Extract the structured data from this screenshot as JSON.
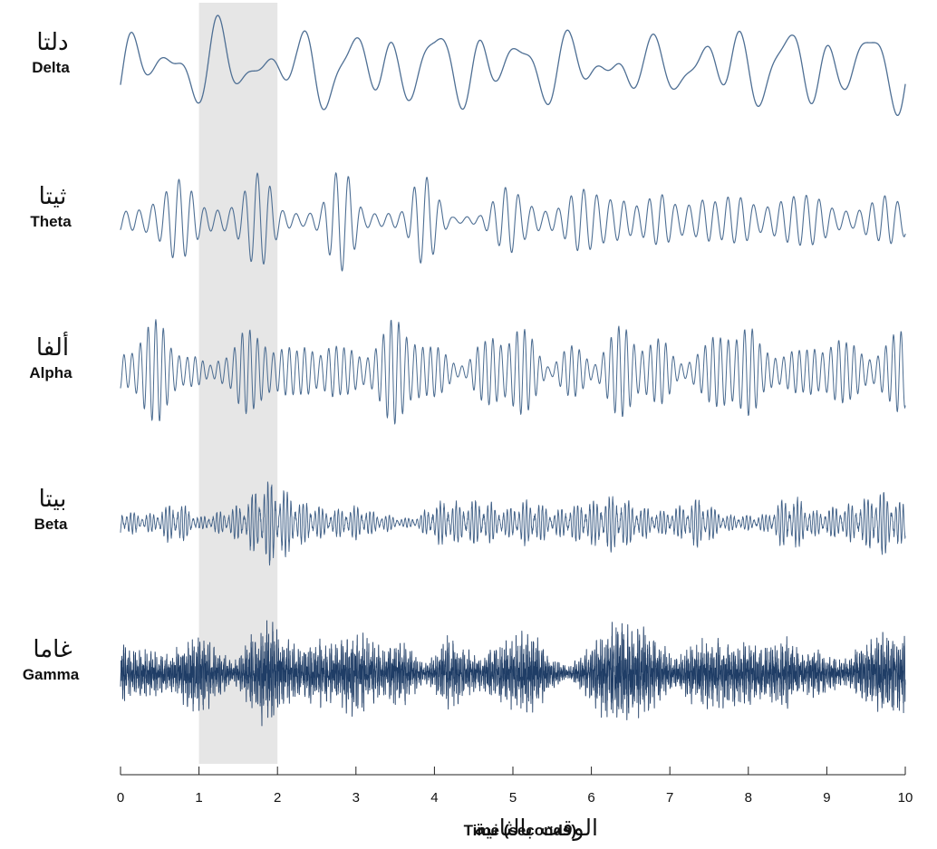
{
  "chart_data": {
    "type": "line",
    "xlabel": "Time (seconds)",
    "xlabel_ar": "الوقت بالثانية",
    "xlim": [
      0,
      10
    ],
    "xticks": [
      0,
      1,
      2,
      3,
      4,
      5,
      6,
      7,
      8,
      9,
      10
    ],
    "highlight": {
      "x_start": 1,
      "x_end": 2,
      "color": "#e6e6e6"
    },
    "grid": false,
    "line_color": "#4e6f94",
    "series": [
      {
        "name": "Delta",
        "name_ar": "دلتا",
        "freq_hz": 1.8,
        "amplitude": 1.0,
        "lw": 1.3,
        "color": "#4e6f94"
      },
      {
        "name": "Theta",
        "name_ar": "ثيتا",
        "freq_hz": 6,
        "amplitude": 1.0,
        "lw": 1.1,
        "color": "#4e6f94"
      },
      {
        "name": "Alpha",
        "name_ar": "ألفا",
        "freq_hz": 10,
        "amplitude": 1.0,
        "lw": 1.0,
        "color": "#4a6b90"
      },
      {
        "name": "Beta",
        "name_ar": "بيتا",
        "freq_hz": 20,
        "amplitude": 0.9,
        "lw": 0.9,
        "color": "#3f5f86"
      },
      {
        "name": "Gamma",
        "name_ar": "غاما",
        "freq_hz": 40,
        "amplitude": 1.0,
        "lw": 0.9,
        "color": "#1f3d66"
      }
    ]
  }
}
